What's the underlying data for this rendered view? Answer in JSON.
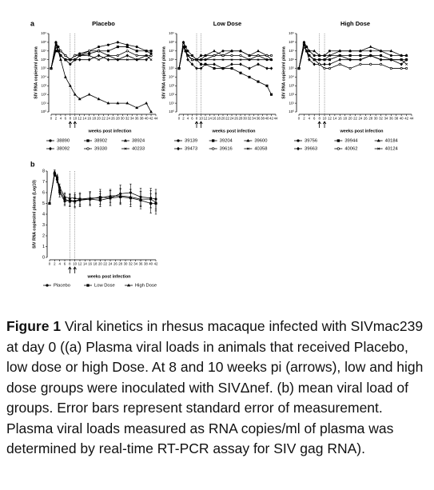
{
  "panel_labels": [
    "a",
    "b"
  ],
  "chart_data": [
    {
      "type": "line",
      "title": "Placebo",
      "ylabel": "SIV RNA copies/ml plasma",
      "xlabel": "weeks post infection",
      "log_scale": true,
      "legend": "below",
      "inoculation_weeks": [
        8,
        10
      ],
      "xlim": [
        0,
        44
      ],
      "xticks": [
        0,
        2,
        4,
        6,
        8,
        10,
        12,
        14,
        16,
        18,
        20,
        22,
        24,
        26,
        28,
        30,
        32,
        34,
        36,
        38,
        40,
        42,
        44
      ],
      "ylim": [
        1,
        1000000000.0
      ],
      "yticks": [
        {
          "value": 1,
          "label": "10⁰"
        },
        {
          "value": 10,
          "label": "10¹"
        },
        {
          "value": 100,
          "label": "10²"
        },
        {
          "value": 1000,
          "label": "10³"
        },
        {
          "value": 10000,
          "label": "10⁴"
        },
        {
          "value": 100000,
          "label": "10⁵"
        },
        {
          "value": 1000000,
          "label": "10⁶"
        },
        {
          "value": 10000000,
          "label": "10⁷"
        },
        {
          "value": 100000000,
          "label": "10⁸"
        },
        {
          "value": 1000000000,
          "label": "10⁹"
        }
      ],
      "x": [
        0,
        2,
        3,
        4,
        6,
        8,
        10,
        12,
        16,
        20,
        24,
        28,
        32,
        36,
        40,
        42
      ],
      "series": [
        {
          "name": "38890",
          "color": "#000000",
          "marker": "circle",
          "values": [
            100000.0,
            100000000.0,
            30000000.0,
            10000000.0,
            3000000.0,
            1000000.0,
            3000000.0,
            5000000.0,
            10000000.0,
            30000000.0,
            50000000.0,
            100000000.0,
            50000000.0,
            30000000.0,
            10000000.0,
            5000000.0
          ]
        },
        {
          "name": "38902",
          "color": "#000000",
          "marker": "square",
          "values": [
            100000.0,
            10000000.0,
            10000000.0,
            3000000.0,
            1000000.0,
            1000000.0,
            1000000.0,
            3000000.0,
            5000000.0,
            10000000.0,
            10000000.0,
            30000000.0,
            30000000.0,
            10000000.0,
            10000000.0,
            10000000.0
          ]
        },
        {
          "name": "38924",
          "color": "#000000",
          "marker": "triangle",
          "values": [
            100000.0,
            100000000.0,
            10000000.0,
            1000000.0,
            10000.0,
            1000,
            100,
            30,
            100,
            30,
            10,
            10,
            10,
            3,
            10,
            1
          ]
        },
        {
          "name": "38092",
          "color": "#000000",
          "marker": "diamond",
          "values": [
            100000.0,
            30000000.0,
            10000000.0,
            3000000.0,
            1000000.0,
            300000.0,
            1000000.0,
            1000000.0,
            1000000.0,
            3000000.0,
            1000000.0,
            1000000.0,
            3000000.0,
            1000000.0,
            1000000.0,
            3000000.0
          ]
        },
        {
          "name": "39330",
          "color": "#000000",
          "marker": "open-circle",
          "values": [
            100000.0,
            30000000.0,
            10000000.0,
            10000000.0,
            3000000.0,
            1000000.0,
            3000000.0,
            3000000.0,
            10000000.0,
            10000000.0,
            3000000.0,
            3000000.0,
            10000000.0,
            3000000.0,
            3000000.0,
            3000000.0
          ]
        },
        {
          "name": "40233",
          "color": "#000000",
          "marker": "cross",
          "values": [
            100000.0,
            50000000.0,
            10000000.0,
            3000000.0,
            1000000.0,
            1000000.0,
            1000000.0,
            3000000.0,
            3000000.0,
            1000000.0,
            3000000.0,
            1000000.0,
            1000000.0,
            1000000.0,
            3000000.0,
            1000000.0
          ]
        }
      ]
    },
    {
      "type": "line",
      "title": "Low Dose",
      "ylabel": "SIV RNA copies/ml plasma",
      "xlabel": "weeks post infection",
      "log_scale": true,
      "legend": "below",
      "inoculation_weeks": [
        8,
        10
      ],
      "xlim": [
        0,
        44
      ],
      "xticks": [
        0,
        2,
        4,
        6,
        8,
        10,
        12,
        14,
        16,
        18,
        20,
        22,
        24,
        26,
        28,
        30,
        32,
        34,
        36,
        38,
        40,
        42,
        44
      ],
      "ylim": [
        1,
        1000000000.0
      ],
      "yticks": [
        {
          "value": 1,
          "label": "10⁰"
        },
        {
          "value": 10,
          "label": "10¹"
        },
        {
          "value": 100,
          "label": "10²"
        },
        {
          "value": 1000,
          "label": "10³"
        },
        {
          "value": 10000,
          "label": "10⁴"
        },
        {
          "value": 100000,
          "label": "10⁵"
        },
        {
          "value": 1000000,
          "label": "10⁶"
        },
        {
          "value": 10000000,
          "label": "10⁷"
        },
        {
          "value": 100000000,
          "label": "10⁸"
        },
        {
          "value": 1000000000,
          "label": "10⁹"
        }
      ],
      "x": [
        0,
        2,
        3,
        4,
        6,
        8,
        10,
        12,
        16,
        20,
        24,
        28,
        32,
        36,
        40,
        42
      ],
      "series": [
        {
          "name": "39139",
          "color": "#000000",
          "marker": "circle",
          "values": [
            100000.0,
            100000000.0,
            30000000.0,
            10000000.0,
            3000000.0,
            1000000.0,
            3000000.0,
            3000000.0,
            3000000.0,
            10000000.0,
            10000000.0,
            10000000.0,
            3000000.0,
            3000000.0,
            1000000.0,
            1000000.0
          ]
        },
        {
          "name": "39204",
          "color": "#000000",
          "marker": "square",
          "values": [
            100000.0,
            30000000.0,
            10000000.0,
            3000000.0,
            1000000.0,
            1000000.0,
            300000.0,
            300000.0,
            100000.0,
            100000.0,
            100000.0,
            30000.0,
            10000.0,
            3000,
            1000,
            100
          ]
        },
        {
          "name": "39600",
          "color": "#000000",
          "marker": "triangle",
          "values": [
            100000.0,
            100000000.0,
            10000000.0,
            3000000.0,
            1000000.0,
            1000000.0,
            1000000.0,
            3000000.0,
            10000000.0,
            3000000.0,
            10000000.0,
            10000000.0,
            3000000.0,
            10000000.0,
            3000000.0,
            1000000.0
          ]
        },
        {
          "name": "39473",
          "color": "#000000",
          "marker": "diamond",
          "values": [
            100000.0,
            30000000.0,
            10000000.0,
            1000000.0,
            300000.0,
            100000.0,
            100000.0,
            300000.0,
            300000.0,
            100000.0,
            300000.0,
            300000.0,
            100000.0,
            300000.0,
            100000.0,
            100000.0
          ]
        },
        {
          "name": "39616",
          "color": "#000000",
          "marker": "open-circle",
          "values": [
            100000.0,
            50000000.0,
            10000000.0,
            3000000.0,
            1000000.0,
            1000000.0,
            1000000.0,
            1000000.0,
            3000000.0,
            3000000.0,
            3000000.0,
            3000000.0,
            1000000.0,
            3000000.0,
            3000000.0,
            3000000.0
          ]
        },
        {
          "name": "40358",
          "color": "#000000",
          "marker": "cross",
          "values": [
            100000.0,
            30000000.0,
            10000000.0,
            3000000.0,
            3000000.0,
            1000000.0,
            1000000.0,
            1000000.0,
            1000000.0,
            1000000.0,
            1000000.0,
            1000000.0,
            1000000.0,
            1000000.0,
            1000000.0,
            1000000.0
          ]
        }
      ]
    },
    {
      "type": "line",
      "title": "High Dose",
      "ylabel": "SIV RNA copies/ml plasma",
      "xlabel": "weeks post infection",
      "log_scale": true,
      "legend": "below",
      "inoculation_weeks": [
        8,
        10
      ],
      "xlim": [
        0,
        44
      ],
      "xticks": [
        0,
        2,
        4,
        6,
        8,
        10,
        12,
        14,
        16,
        18,
        20,
        22,
        24,
        26,
        28,
        30,
        32,
        34,
        36,
        38,
        40,
        42,
        44
      ],
      "ylim": [
        1,
        1000000000.0
      ],
      "yticks": [
        {
          "value": 1,
          "label": "10⁰"
        },
        {
          "value": 10,
          "label": "10¹"
        },
        {
          "value": 100,
          "label": "10²"
        },
        {
          "value": 1000,
          "label": "10³"
        },
        {
          "value": 10000,
          "label": "10⁴"
        },
        {
          "value": 100000,
          "label": "10⁵"
        },
        {
          "value": 1000000,
          "label": "10⁶"
        },
        {
          "value": 10000000,
          "label": "10⁷"
        },
        {
          "value": 100000000,
          "label": "10⁸"
        },
        {
          "value": 1000000000,
          "label": "10⁹"
        }
      ],
      "x": [
        0,
        2,
        3,
        4,
        6,
        8,
        10,
        12,
        16,
        20,
        24,
        28,
        32,
        36,
        40,
        42
      ],
      "series": [
        {
          "name": "39756",
          "color": "#000000",
          "marker": "circle",
          "values": [
            100000.0,
            100000000.0,
            30000000.0,
            10000000.0,
            3000000.0,
            3000000.0,
            3000000.0,
            10000000.0,
            10000000.0,
            10000000.0,
            10000000.0,
            10000000.0,
            10000000.0,
            3000000.0,
            3000000.0,
            3000000.0
          ]
        },
        {
          "name": "39944",
          "color": "#000000",
          "marker": "square",
          "values": [
            100000.0,
            50000000.0,
            10000000.0,
            3000000.0,
            1000000.0,
            1000000.0,
            1000000.0,
            1000000.0,
            3000000.0,
            3000000.0,
            3000000.0,
            3000000.0,
            3000000.0,
            1000000.0,
            1000000.0,
            1000000.0
          ]
        },
        {
          "name": "40184",
          "color": "#000000",
          "marker": "triangle",
          "values": [
            100000.0,
            100000000.0,
            30000000.0,
            10000000.0,
            10000000.0,
            3000000.0,
            3000000.0,
            3000000.0,
            10000000.0,
            10000000.0,
            10000000.0,
            30000000.0,
            10000000.0,
            10000000.0,
            3000000.0,
            3000000.0
          ]
        },
        {
          "name": "39663",
          "color": "#000000",
          "marker": "diamond",
          "values": [
            100000.0,
            30000000.0,
            10000000.0,
            1000000.0,
            300000.0,
            300000.0,
            300000.0,
            300000.0,
            1000000.0,
            1000000.0,
            1000000.0,
            3000000.0,
            1000000.0,
            1000000.0,
            300000.0,
            1000000.0
          ]
        },
        {
          "name": "40062",
          "color": "#000000",
          "marker": "open-circle",
          "values": [
            100000.0,
            30000000.0,
            10000000.0,
            3000000.0,
            1000000.0,
            300000.0,
            100000.0,
            100000.0,
            300000.0,
            100000.0,
            300000.0,
            300000.0,
            300000.0,
            100000.0,
            100000.0,
            100000.0
          ]
        },
        {
          "name": "40124",
          "color": "#000000",
          "marker": "cross",
          "values": [
            100000.0,
            50000000.0,
            10000000.0,
            3000000.0,
            1000000.0,
            1000000.0,
            1000000.0,
            3000000.0,
            3000000.0,
            1000000.0,
            1000000.0,
            3000000.0,
            1000000.0,
            1000000.0,
            1000000.0,
            300000.0
          ]
        }
      ]
    },
    {
      "type": "errorline",
      "ylabel": "SIV RNA copies/ml plasma (Log10)",
      "xlabel": "weeks post infection",
      "log_scale": false,
      "legend": "below",
      "inoculation_weeks": [
        8,
        10
      ],
      "xlim": [
        0,
        42
      ],
      "xticks": [
        0,
        2,
        4,
        6,
        8,
        10,
        12,
        14,
        16,
        18,
        20,
        22,
        24,
        26,
        28,
        30,
        32,
        34,
        36,
        38,
        40,
        42
      ],
      "ylim": [
        0,
        8
      ],
      "yticks": [
        0,
        1,
        2,
        3,
        4,
        5,
        6,
        7,
        8
      ],
      "x": [
        0,
        2,
        3,
        4,
        6,
        8,
        10,
        12,
        16,
        20,
        24,
        28,
        32,
        36,
        40,
        42
      ],
      "series": [
        {
          "name": "Placebo",
          "color": "#000000",
          "marker": "circle",
          "values": [
            5,
            7.8,
            7.2,
            6,
            5.2,
            5.3,
            5.2,
            5.3,
            5.4,
            5.6,
            5.5,
            5.9,
            6,
            5.6,
            5.5,
            5.4
          ],
          "errors": [
            0,
            0.2,
            0.3,
            0.4,
            0.4,
            0.5,
            0.6,
            0.6,
            0.6,
            0.7,
            0.7,
            0.8,
            0.8,
            0.8,
            0.9,
            0.9
          ]
        },
        {
          "name": "Low Dose",
          "color": "#000000",
          "marker": "square",
          "values": [
            5,
            7.7,
            7.4,
            6.2,
            5.4,
            5.2,
            5.2,
            5.4,
            5.4,
            5.3,
            5.5,
            5.6,
            5.5,
            5.3,
            5,
            5
          ],
          "errors": [
            0,
            0.2,
            0.3,
            0.4,
            0.5,
            0.5,
            0.5,
            0.6,
            0.6,
            0.6,
            0.7,
            0.7,
            0.8,
            0.8,
            0.9,
            1
          ]
        },
        {
          "name": "High Dose",
          "color": "#000000",
          "marker": "triangle",
          "values": [
            5,
            7.9,
            7.3,
            6.5,
            5.6,
            5.5,
            5.5,
            5.4,
            5.5,
            5.5,
            5.7,
            5.7,
            5.6,
            5.4,
            5.4,
            5.1
          ],
          "errors": [
            0,
            0.2,
            0.3,
            0.3,
            0.4,
            0.4,
            0.5,
            0.5,
            0.6,
            0.6,
            0.6,
            0.7,
            0.7,
            0.7,
            0.8,
            0.8
          ]
        }
      ]
    }
  ],
  "caption": {
    "label": "Figure 1",
    "text": "Viral kinetics in rhesus macaque infected with SIVmac239 at day 0 ((a) Plasma viral loads in animals that received Placebo, low dose or high Dose. At 8 and 10 weeks pi (arrows), low and high dose groups were inoculated with SIVΔnef. (b) mean viral load of groups. Error bars represent standard error of measurement. Plasma viral loads measured as RNA copies/ml of plasma was determined by real-time RT-PCR assay for SIV gag RNA)."
  }
}
